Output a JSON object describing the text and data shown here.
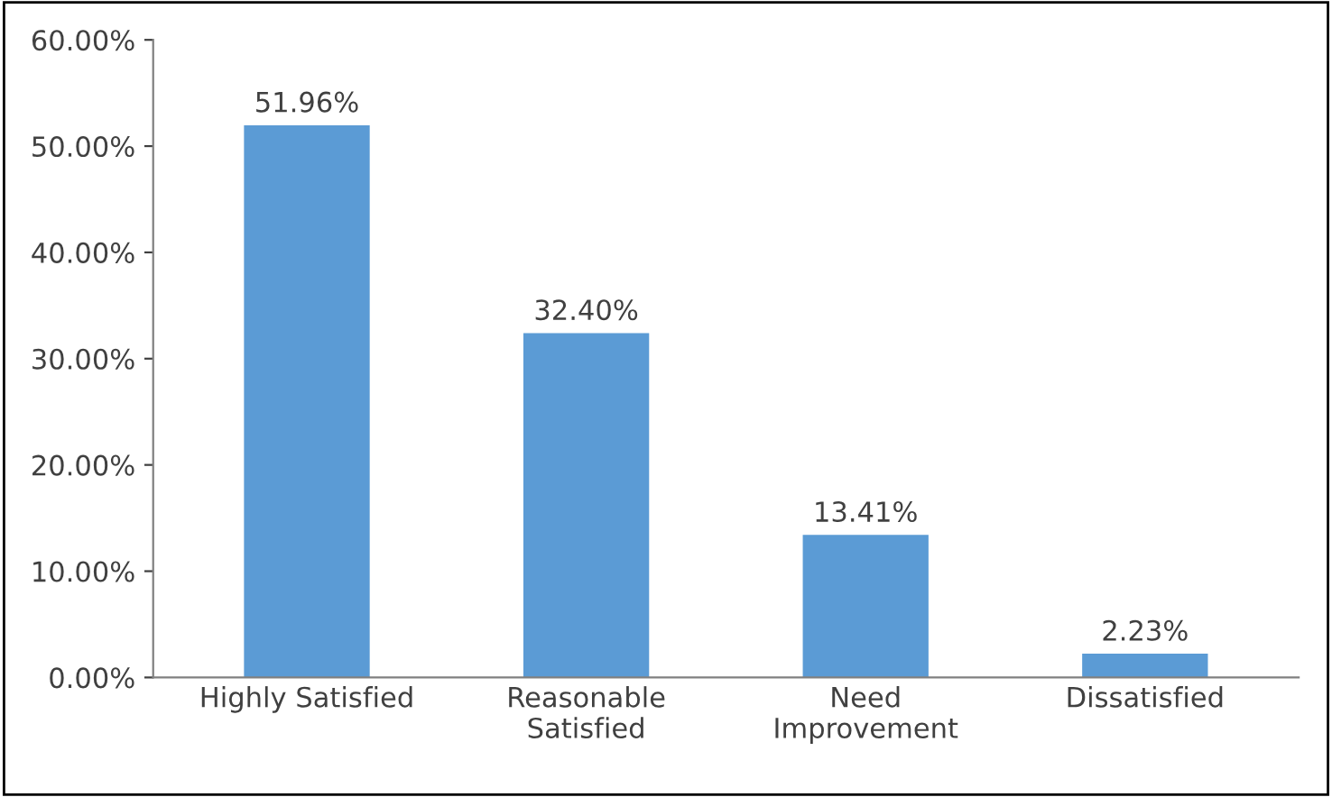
{
  "chart_data": {
    "type": "bar",
    "categories": [
      "Highly Satisfied",
      "Reasonable\nSatisfied",
      "Need\nImprovement",
      "Dissatisfied"
    ],
    "values": [
      51.96,
      32.4,
      13.41,
      2.23
    ],
    "value_labels": [
      "51.96%",
      "32.40%",
      "13.41%",
      "2.23%"
    ],
    "color": "#5b9bd5",
    "ylim": [
      0,
      60
    ],
    "yticks": [
      {
        "value": 0,
        "label": "0.00%"
      },
      {
        "value": 10,
        "label": "10.00%"
      },
      {
        "value": 20,
        "label": "20.00%"
      },
      {
        "value": 30,
        "label": "30.00%"
      },
      {
        "value": 40,
        "label": "40.00%"
      },
      {
        "value": 50,
        "label": "50.00%"
      },
      {
        "value": 60,
        "label": "60.00%"
      }
    ],
    "grid": false,
    "legend": false
  }
}
